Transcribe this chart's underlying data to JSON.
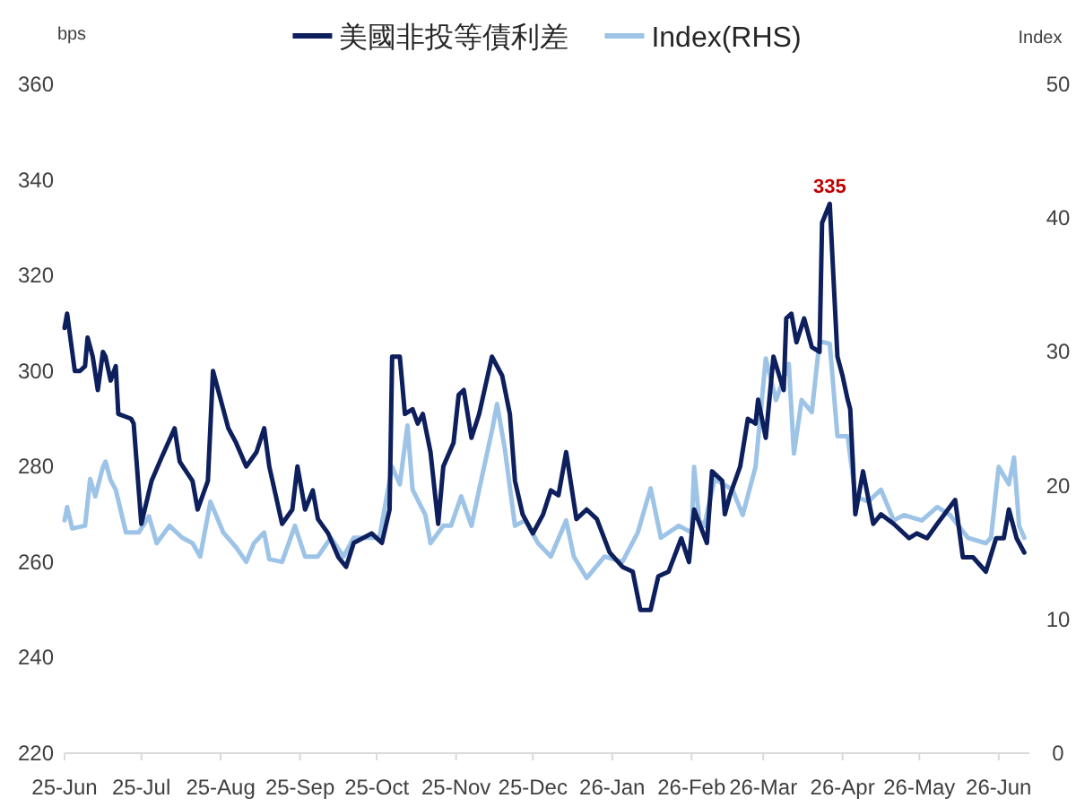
{
  "chart_data": {
    "type": "line",
    "ylabel": "bps",
    "y2label": "Index",
    "legend": "top",
    "grid": false,
    "xlim": [
      "2025-06-01",
      "2026-06-13"
    ],
    "xticks": [
      {
        "value": "2025-06-01",
        "label": "25-Jun"
      },
      {
        "value": "2025-07-01",
        "label": "25-Jul"
      },
      {
        "value": "2025-08-01",
        "label": "25-Aug"
      },
      {
        "value": "2025-09-01",
        "label": "25-Sep"
      },
      {
        "value": "2025-10-01",
        "label": "25-Oct"
      },
      {
        "value": "2025-11-01",
        "label": "25-Nov"
      },
      {
        "value": "2025-12-01",
        "label": "25-Dec"
      },
      {
        "value": "2026-01-01",
        "label": "26-Jan"
      },
      {
        "value": "2026-02-01",
        "label": "26-Feb"
      },
      {
        "value": "2026-03-01",
        "label": "26-Mar"
      },
      {
        "value": "2026-04-01",
        "label": "26-Apr"
      },
      {
        "value": "2026-05-01",
        "label": "26-May"
      },
      {
        "value": "2026-06-01",
        "label": "26-Jun"
      }
    ],
    "ylim": [
      220,
      360
    ],
    "yticks": [
      220,
      240,
      260,
      280,
      300,
      320,
      340,
      360
    ],
    "y2lim": [
      0,
      50
    ],
    "y2ticks": [
      0,
      10,
      20,
      30,
      40,
      50
    ],
    "annotations": [
      {
        "text": "335",
        "x": "2026-03-27",
        "y": 335
      }
    ],
    "series": [
      {
        "name": "美國非投等債利差",
        "color": "#0d1f5c",
        "x": [
          "2025-06-01",
          "2025-06-02",
          "2025-06-05",
          "2025-06-07",
          "2025-06-09",
          "2025-06-10",
          "2025-06-12",
          "2025-06-14",
          "2025-06-16",
          "2025-06-17",
          "2025-06-19",
          "2025-06-21",
          "2025-06-22",
          "2025-06-27",
          "2025-06-28",
          "2025-07-01",
          "2025-07-05",
          "2025-07-09",
          "2025-07-14",
          "2025-07-16",
          "2025-07-21",
          "2025-07-23",
          "2025-07-27",
          "2025-07-29",
          "2025-08-04",
          "2025-08-07",
          "2025-08-11",
          "2025-08-15",
          "2025-08-18",
          "2025-08-20",
          "2025-08-25",
          "2025-08-29",
          "2025-08-31",
          "2025-09-03",
          "2025-09-06",
          "2025-09-08",
          "2025-09-12",
          "2025-09-16",
          "2025-09-19",
          "2025-09-22",
          "2025-09-29",
          "2025-10-03",
          "2025-10-06",
          "2025-10-07",
          "2025-10-10",
          "2025-10-12",
          "2025-10-15",
          "2025-10-17",
          "2025-10-19",
          "2025-10-22",
          "2025-10-25",
          "2025-10-27",
          "2025-10-31",
          "2025-11-02",
          "2025-11-04",
          "2025-11-07",
          "2025-11-10",
          "2025-11-15",
          "2025-11-19",
          "2025-11-22",
          "2025-11-24",
          "2025-11-27",
          "2025-12-01",
          "2025-12-05",
          "2025-12-08",
          "2025-12-11",
          "2025-12-14",
          "2025-12-18",
          "2025-12-22",
          "2025-12-26",
          "2025-12-31",
          "2026-01-05",
          "2026-01-09",
          "2026-01-12",
          "2026-01-16",
          "2026-01-19",
          "2026-01-23",
          "2026-01-28",
          "2026-01-31",
          "2026-02-02",
          "2026-02-07",
          "2026-02-09",
          "2026-02-13",
          "2026-02-14",
          "2026-02-16",
          "2026-02-20",
          "2026-02-23",
          "2026-02-26",
          "2026-02-27",
          "2026-03-02",
          "2026-03-05",
          "2026-03-09",
          "2026-03-10",
          "2026-03-12",
          "2026-03-14",
          "2026-03-17",
          "2026-03-20",
          "2026-03-23",
          "2026-03-24",
          "2026-03-27",
          "2026-03-30",
          "2026-04-01",
          "2026-04-03",
          "2026-04-04",
          "2026-04-06",
          "2026-04-09",
          "2026-04-13",
          "2026-04-16",
          "2026-04-21",
          "2026-04-27",
          "2026-04-30",
          "2026-05-04",
          "2026-05-08",
          "2026-05-15",
          "2026-05-18",
          "2026-05-22",
          "2026-05-27",
          "2026-05-31",
          "2026-06-03",
          "2026-06-05",
          "2026-06-08",
          "2026-06-11"
        ],
        "values": [
          309,
          312,
          300,
          300,
          301,
          307,
          303,
          296,
          304,
          303,
          298,
          301,
          291,
          290,
          289,
          268,
          277,
          282,
          288,
          281,
          277,
          271,
          277,
          300,
          288,
          285,
          280,
          283,
          288,
          280,
          268,
          271,
          280,
          271,
          275,
          269,
          266,
          261,
          259,
          264,
          266,
          264,
          271,
          303,
          303,
          291,
          292,
          289,
          291,
          283,
          268,
          280,
          285,
          295,
          296,
          286,
          291,
          303,
          299,
          291,
          277,
          270,
          266,
          270,
          275,
          274,
          283,
          269,
          271,
          269,
          262,
          259,
          258,
          250,
          250,
          257,
          258,
          265,
          260,
          271,
          264,
          279,
          277,
          270,
          274,
          280,
          290,
          289,
          294,
          286,
          303,
          296,
          311,
          312,
          306,
          311,
          305,
          304,
          331,
          335,
          303,
          299,
          294,
          292,
          270,
          279,
          268,
          270,
          268,
          265,
          266,
          265,
          268,
          273,
          261,
          261,
          258,
          265,
          265,
          271,
          265,
          262
        ]
      },
      {
        "name": "Index(RHS)",
        "color": "#9dc3e6",
        "axis": "y2",
        "x": [
          "2025-06-01",
          "2025-06-02",
          "2025-06-04",
          "2025-06-09",
          "2025-06-11",
          "2025-06-13",
          "2025-06-16",
          "2025-06-17",
          "2025-06-19",
          "2025-06-21",
          "2025-06-25",
          "2025-06-30",
          "2025-07-04",
          "2025-07-07",
          "2025-07-12",
          "2025-07-17",
          "2025-07-21",
          "2025-07-24",
          "2025-07-28",
          "2025-08-02",
          "2025-08-07",
          "2025-08-11",
          "2025-08-14",
          "2025-08-18",
          "2025-08-20",
          "2025-08-25",
          "2025-08-30",
          "2025-09-03",
          "2025-09-08",
          "2025-09-13",
          "2025-09-18",
          "2025-09-22",
          "2025-09-26",
          "2025-10-02",
          "2025-10-07",
          "2025-10-10",
          "2025-10-13",
          "2025-10-15",
          "2025-10-20",
          "2025-10-22",
          "2025-10-27",
          "2025-10-30",
          "2025-11-03",
          "2025-11-07",
          "2025-11-10",
          "2025-11-15",
          "2025-11-17",
          "2025-11-20",
          "2025-11-24",
          "2025-11-28",
          "2025-12-03",
          "2025-12-08",
          "2025-12-14",
          "2025-12-17",
          "2025-12-22",
          "2025-12-29",
          "2026-01-05",
          "2026-01-11",
          "2026-01-16",
          "2026-01-20",
          "2026-01-27",
          "2026-02-01",
          "2026-02-02",
          "2026-02-04",
          "2026-02-06",
          "2026-02-10",
          "2026-02-17",
          "2026-02-21",
          "2026-02-26",
          "2026-03-02",
          "2026-03-06",
          "2026-03-11",
          "2026-03-13",
          "2026-03-16",
          "2026-03-20",
          "2026-03-23",
          "2026-03-27",
          "2026-03-30",
          "2026-04-03",
          "2026-04-06",
          "2026-04-11",
          "2026-04-16",
          "2026-04-21",
          "2026-04-25",
          "2026-05-02",
          "2026-05-08",
          "2026-05-13",
          "2026-05-20",
          "2026-05-27",
          "2026-05-29",
          "2026-06-01",
          "2026-06-05",
          "2026-06-07",
          "2026-06-09",
          "2026-06-11"
        ],
        "values": [
          17.4,
          18.4,
          16.8,
          17.0,
          20.5,
          19.2,
          21.4,
          21.8,
          20.4,
          19.7,
          16.5,
          16.5,
          17.7,
          15.7,
          17.0,
          16.1,
          15.7,
          14.7,
          18.8,
          16.5,
          15.4,
          14.3,
          15.7,
          16.5,
          14.5,
          14.3,
          17.0,
          14.7,
          14.7,
          16.1,
          14.7,
          16.1,
          16.1,
          16.1,
          21.4,
          20.1,
          24.5,
          19.7,
          17.8,
          15.7,
          17.0,
          17.0,
          19.2,
          17.0,
          19.7,
          24.1,
          26.1,
          22.8,
          17.0,
          17.4,
          15.7,
          14.7,
          17.4,
          14.7,
          13.1,
          14.7,
          14.3,
          16.5,
          19.8,
          16.1,
          17.0,
          16.5,
          21.4,
          17.4,
          17.0,
          20.5,
          19.7,
          17.8,
          21.4,
          29.5,
          26.4,
          29.1,
          22.4,
          26.4,
          25.5,
          30.8,
          30.6,
          23.7,
          23.7,
          19.2,
          18.8,
          19.7,
          17.4,
          17.8,
          17.4,
          18.4,
          17.8,
          16.1,
          15.7,
          16.1,
          21.4,
          20.1,
          22.1,
          17.0,
          16.1
        ]
      }
    ]
  }
}
